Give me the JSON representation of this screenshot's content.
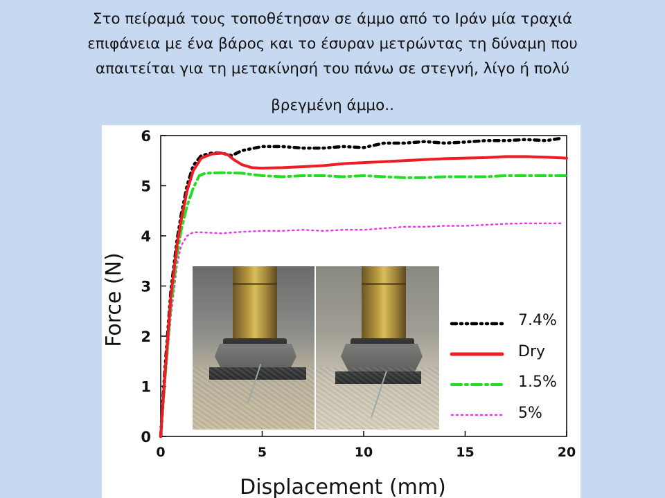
{
  "slide": {
    "title_line1": "Στο πείραμά τους τοποθέτησαν σε άμμο από το Ιράν μία τραχιά",
    "title_line2": "επιφάνεια με ένα βάρος και το έσυραν μετρώντας τη δύναμη που",
    "title_line3": "απαιτείται  για τη μετακίνησή του πάνω σε στεγνή, λίγο ή πολύ",
    "title_line4": "βρεγμένη άμμο.."
  },
  "colors": {
    "background": "#c6d9f1",
    "series_7_4": "#000000",
    "series_dry": "#ee1c24",
    "series_1_5": "#22dd22",
    "series_5": "#ee33ee"
  },
  "chart_data": {
    "type": "line",
    "title": "",
    "xlabel": "Displacement (mm)",
    "ylabel": "Force (N)",
    "xlim": [
      0,
      20
    ],
    "ylim": [
      0,
      6
    ],
    "xticks": [
      0,
      5,
      10,
      15,
      20
    ],
    "yticks": [
      0,
      1,
      2,
      3,
      4,
      5,
      6
    ],
    "legend_position": "right-center",
    "inset": "two photographs of a brass rod pushing a metal block with a textured plate over sand",
    "series": [
      {
        "name": "7.4%",
        "style": "dash-dot-dot",
        "x": [
          0,
          0.2,
          0.5,
          0.8,
          1.0,
          1.3,
          1.6,
          2.0,
          2.5,
          3.0,
          3.5,
          4.0,
          5.0,
          6.0,
          7.0,
          8.0,
          9.0,
          10.0,
          11.0,
          12.0,
          13.0,
          14.0,
          15.0,
          16.0,
          17.0,
          18.0,
          19.0,
          19.8
        ],
        "y": [
          0,
          1.3,
          2.9,
          3.9,
          4.4,
          5.0,
          5.4,
          5.6,
          5.65,
          5.65,
          5.6,
          5.7,
          5.78,
          5.78,
          5.75,
          5.75,
          5.78,
          5.76,
          5.85,
          5.85,
          5.88,
          5.85,
          5.87,
          5.9,
          5.9,
          5.92,
          5.9,
          5.95
        ]
      },
      {
        "name": "Dry",
        "style": "solid",
        "x": [
          0,
          0.2,
          0.5,
          0.8,
          1.0,
          1.3,
          1.6,
          2.0,
          2.5,
          3.0,
          3.3,
          3.6,
          4.0,
          4.5,
          5.0,
          6.0,
          7.0,
          8.0,
          9.0,
          10.0,
          11.0,
          12.0,
          13.0,
          14.0,
          15.0,
          16.0,
          17.0,
          18.0,
          19.0,
          20.0
        ],
        "y": [
          0,
          1.2,
          2.8,
          3.8,
          4.3,
          4.9,
          5.3,
          5.55,
          5.63,
          5.65,
          5.62,
          5.52,
          5.42,
          5.36,
          5.35,
          5.36,
          5.38,
          5.4,
          5.44,
          5.46,
          5.48,
          5.5,
          5.52,
          5.54,
          5.55,
          5.56,
          5.58,
          5.58,
          5.57,
          5.55
        ]
      },
      {
        "name": "1.5%",
        "style": "dash-dot",
        "x": [
          0,
          0.2,
          0.5,
          0.8,
          1.0,
          1.3,
          1.6,
          1.9,
          2.2,
          3.0,
          4.0,
          5.0,
          6.0,
          7.0,
          8.0,
          9.0,
          10.0,
          11.0,
          12.0,
          13.0,
          14.0,
          15.0,
          16.0,
          17.0,
          18.0,
          19.0,
          20.0
        ],
        "y": [
          0,
          1.1,
          2.6,
          3.6,
          4.1,
          4.6,
          4.95,
          5.2,
          5.25,
          5.26,
          5.25,
          5.2,
          5.18,
          5.2,
          5.2,
          5.18,
          5.2,
          5.18,
          5.16,
          5.16,
          5.18,
          5.18,
          5.18,
          5.2,
          5.2,
          5.2,
          5.2
        ]
      },
      {
        "name": "5%",
        "style": "dotted",
        "x": [
          0,
          0.2,
          0.5,
          0.8,
          1.0,
          1.3,
          1.6,
          2.0,
          3.0,
          4.0,
          5.0,
          6.0,
          7.0,
          8.0,
          9.0,
          10.0,
          11.0,
          12.0,
          13.0,
          14.0,
          15.0,
          16.0,
          17.0,
          18.0,
          19.0,
          19.8
        ],
        "y": [
          0,
          1.0,
          2.4,
          3.4,
          3.8,
          4.0,
          4.07,
          4.07,
          4.05,
          4.08,
          4.1,
          4.1,
          4.12,
          4.1,
          4.12,
          4.12,
          4.15,
          4.18,
          4.18,
          4.2,
          4.2,
          4.22,
          4.24,
          4.25,
          4.25,
          4.25
        ]
      }
    ]
  }
}
